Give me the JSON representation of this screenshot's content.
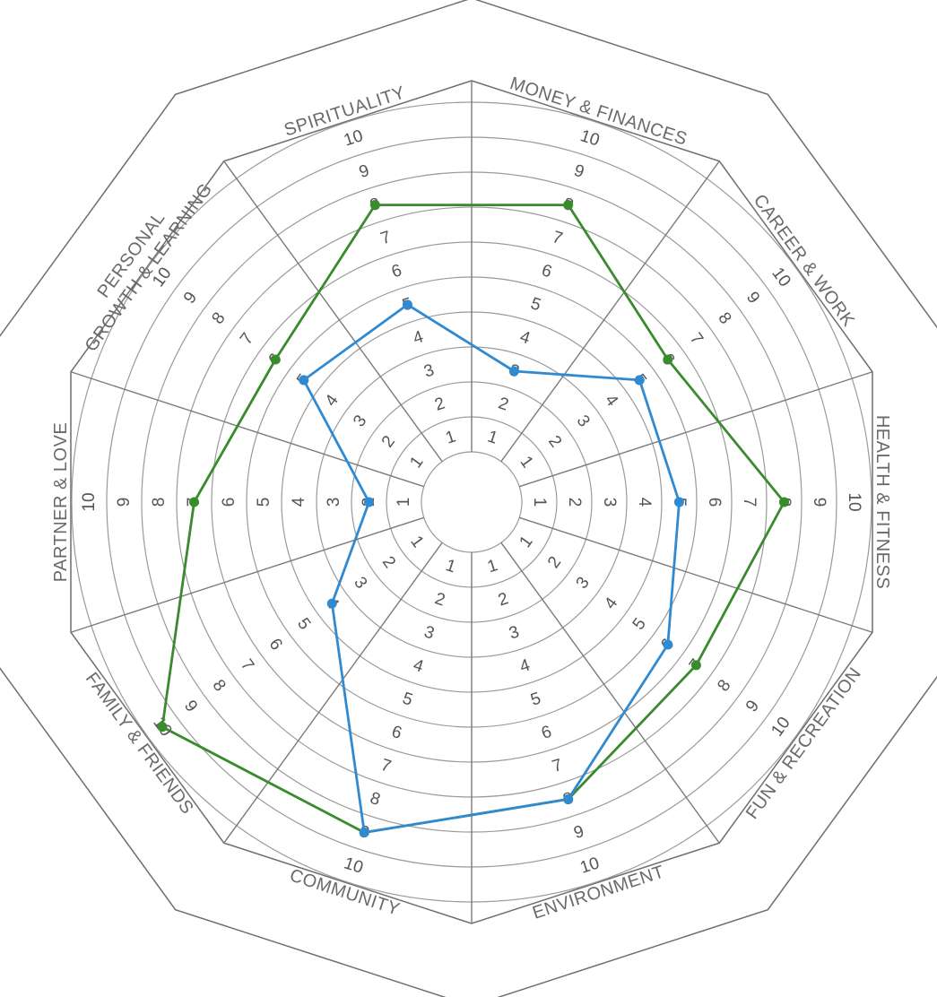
{
  "chart_data": {
    "type": "radar",
    "categories": [
      [
        "MONEY & FINANCES"
      ],
      [
        "CAREER & WORK"
      ],
      [
        "HEALTH & FITNESS"
      ],
      [
        "FUN & RECREATION"
      ],
      [
        "ENVIRONMENT"
      ],
      [
        "COMMUNITY"
      ],
      [
        "FAMILY & FRIENDS"
      ],
      [
        "PARTNER & LOVE"
      ],
      [
        "PERSONAL",
        "GROWTH & LEARNING"
      ],
      [
        "SPIRITUALITY"
      ]
    ],
    "scale": [
      1,
      2,
      3,
      4,
      5,
      6,
      7,
      8,
      9,
      10
    ],
    "series": [
      {
        "color": "#3a8a2e",
        "values": [
          8,
          6,
          8,
          7,
          8,
          9,
          10,
          7,
          6,
          8
        ]
      },
      {
        "color": "#2f8ad2",
        "values": [
          3,
          5,
          5,
          6,
          8,
          9,
          4,
          2,
          5,
          5
        ]
      }
    ]
  }
}
